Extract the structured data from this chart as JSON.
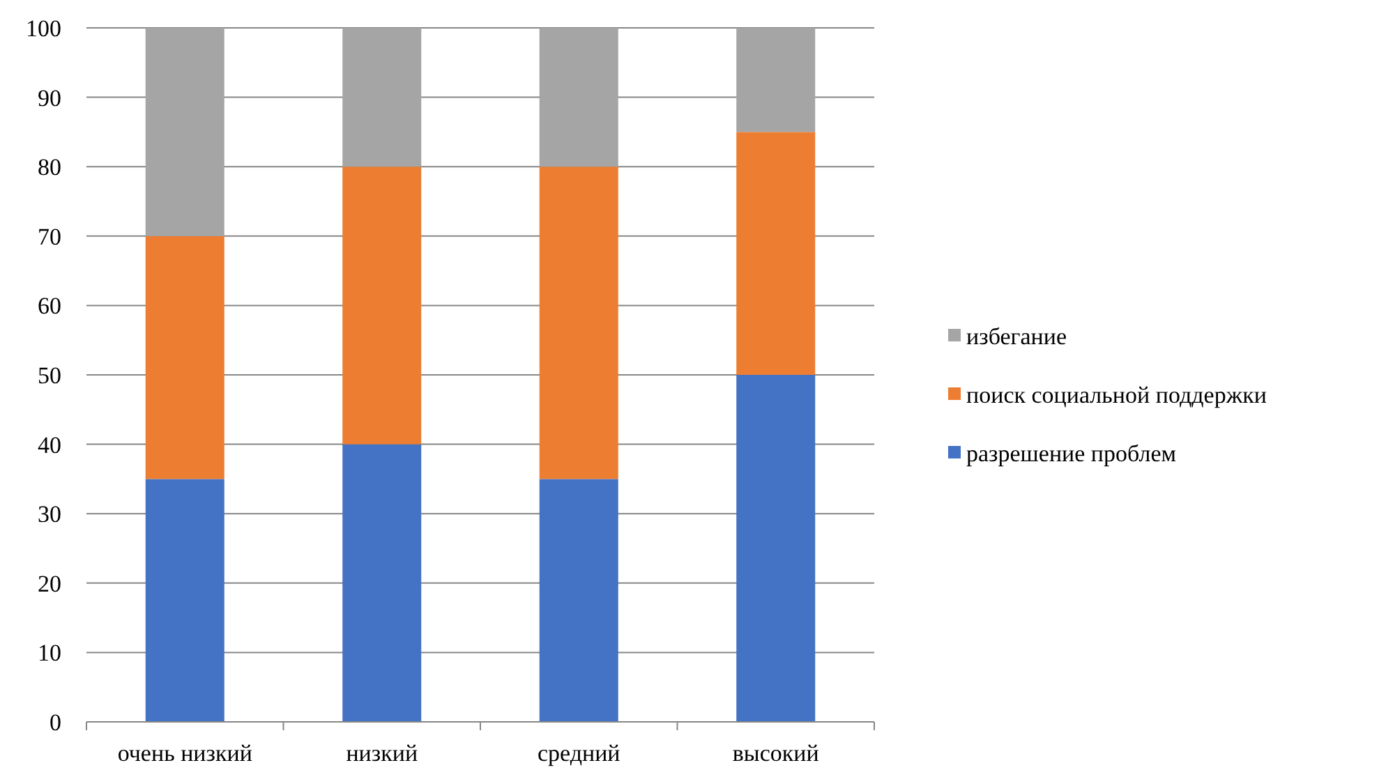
{
  "chart_data": {
    "type": "bar",
    "stacked": true,
    "categories": [
      "очень низкий",
      "низкий",
      "средний",
      "высокий"
    ],
    "series": [
      {
        "name": "разрешение проблем",
        "color": "#4472c4",
        "values": [
          35,
          40,
          35,
          50
        ]
      },
      {
        "name": "поиск социальной поддержки",
        "color": "#ed7d31",
        "values": [
          35,
          40,
          45,
          35
        ]
      },
      {
        "name": "избегание",
        "color": "#a5a5a5",
        "values": [
          30,
          20,
          20,
          15
        ]
      }
    ],
    "ylim": [
      0,
      100
    ],
    "yticks": [
      0,
      10,
      20,
      30,
      40,
      50,
      60,
      70,
      80,
      90,
      100
    ],
    "grid": "y",
    "legend": "right"
  }
}
